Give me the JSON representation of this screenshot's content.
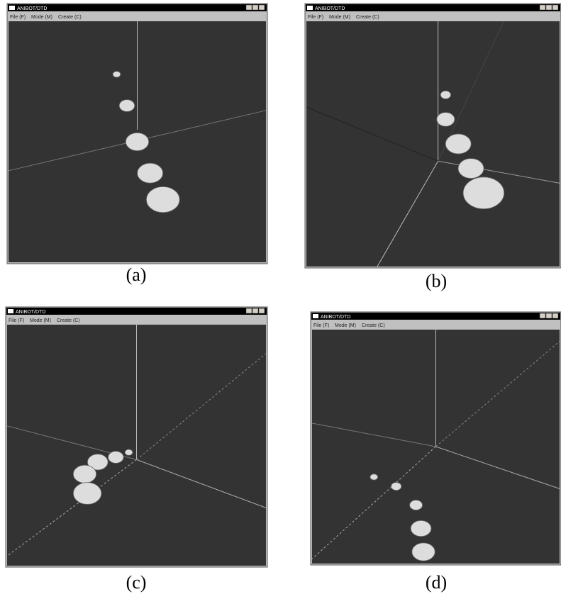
{
  "windows": [
    {
      "title": "ANIBOT/DTD",
      "menu": [
        "File (F)",
        "Mode (M)",
        "Create (C)"
      ],
      "caption": "(a)"
    },
    {
      "title": "ANIBOT/DTD",
      "menu": [
        "File (F)",
        "Mode (M)",
        "Create (C)"
      ],
      "caption": "(b)"
    },
    {
      "title": "ANIBOT/DTD",
      "menu": [
        "File (F)",
        "Mode (M)",
        "Create (C)"
      ],
      "caption": "(c)"
    },
    {
      "title": "ANIBOT/DTD",
      "menu": [
        "File (F)",
        "Mode (M)",
        "Create (C)"
      ],
      "caption": "(d)"
    }
  ]
}
